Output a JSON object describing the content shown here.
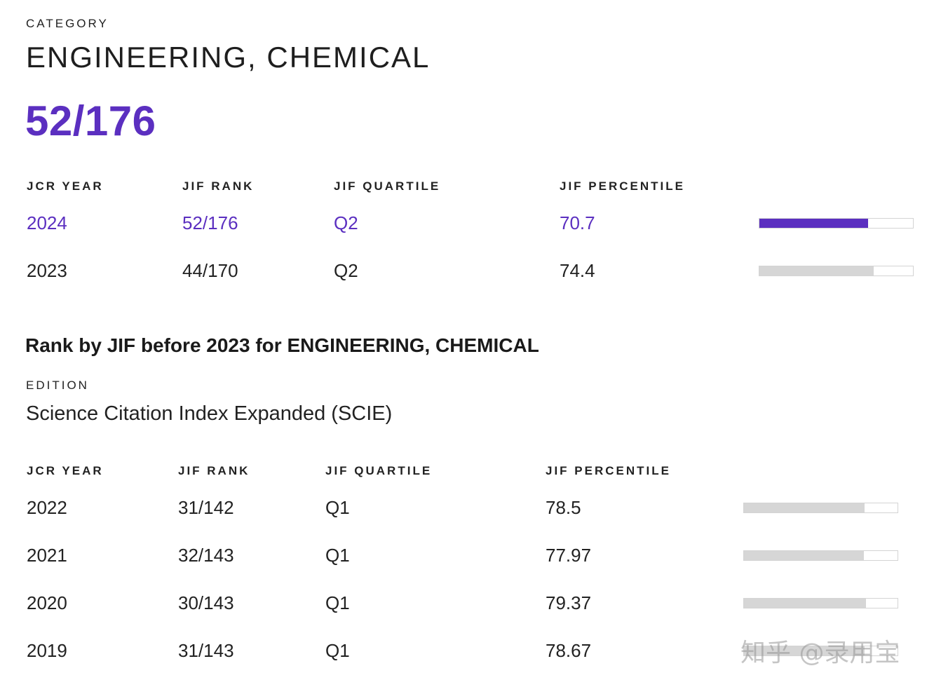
{
  "category": {
    "label": "CATEGORY",
    "name": "ENGINEERING, CHEMICAL",
    "current_rank": "52/176"
  },
  "table_headers": {
    "jcr_year": "JCR YEAR",
    "jif_rank": "JIF RANK",
    "jif_quartile": "JIF QUARTILE",
    "jif_percentile": "JIF PERCENTILE"
  },
  "current_rows": [
    {
      "year": "2024",
      "rank": "52/176",
      "quartile": "Q2",
      "percentile": "70.7",
      "percentile_value": 70.7
    },
    {
      "year": "2023",
      "rank": "44/170",
      "quartile": "Q2",
      "percentile": "74.4",
      "percentile_value": 74.4
    }
  ],
  "before_section": {
    "title": "Rank by JIF before 2023 for ENGINEERING, CHEMICAL",
    "edition_label": "EDITION",
    "edition_value": "Science Citation Index Expanded (SCIE)"
  },
  "before_rows": [
    {
      "year": "2022",
      "rank": "31/142",
      "quartile": "Q1",
      "percentile": "78.5",
      "percentile_value": 78.5
    },
    {
      "year": "2021",
      "rank": "32/143",
      "quartile": "Q1",
      "percentile": "77.97",
      "percentile_value": 77.97
    },
    {
      "year": "2020",
      "rank": "30/143",
      "quartile": "Q1",
      "percentile": "79.37",
      "percentile_value": 79.37
    },
    {
      "year": "2019",
      "rank": "31/143",
      "quartile": "Q1",
      "percentile": "78.67",
      "percentile_value": 78.67
    }
  ],
  "watermark": "知乎 @录用宝",
  "colors": {
    "accent": "#5b2fc0",
    "bar_track": "#ffffff",
    "bar_fill": "#d6d6d6"
  }
}
